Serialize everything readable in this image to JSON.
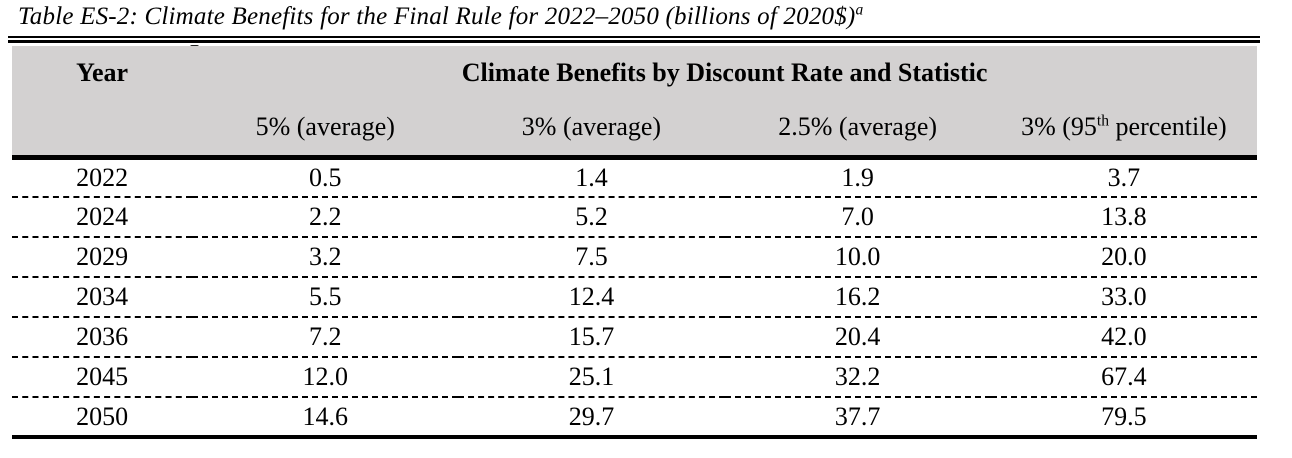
{
  "title": {
    "text": "Table ES-2: Climate Benefits for the Final Rule for 2022–2050 (billions of 2020$)",
    "footnote_marker": "a"
  },
  "table": {
    "header": {
      "year_label": "Year",
      "group_label": "Climate Benefits by Discount Rate and Statistic",
      "columns": [
        {
          "label": "5% (average)"
        },
        {
          "label": "3% (average)"
        },
        {
          "label": "2.5% (average)"
        },
        {
          "pre": "3% (95",
          "sup": "th",
          "post": " percentile)"
        }
      ]
    },
    "rows": [
      {
        "year": "2022",
        "values": [
          "0.5",
          "1.4",
          "1.9",
          "3.7"
        ]
      },
      {
        "year": "2024",
        "values": [
          "2.2",
          "5.2",
          "7.0",
          "13.8"
        ]
      },
      {
        "year": "2029",
        "values": [
          "3.2",
          "7.5",
          "10.0",
          "20.0"
        ]
      },
      {
        "year": "2034",
        "values": [
          "5.5",
          "12.4",
          "16.2",
          "33.0"
        ]
      },
      {
        "year": "2036",
        "values": [
          "7.2",
          "15.7",
          "20.4",
          "42.0"
        ]
      },
      {
        "year": "2045",
        "values": [
          "12.0",
          "25.1",
          "32.2",
          "67.4"
        ]
      },
      {
        "year": "2050",
        "values": [
          "14.6",
          "29.7",
          "37.7",
          "79.5"
        ]
      }
    ]
  },
  "colors": {
    "header_bg": "#d3d1d1",
    "text": "#000000",
    "rule": "#000000"
  },
  "chart_data": {
    "type": "table",
    "title": "Table ES-2: Climate Benefits for the Final Rule for 2022–2050 (billions of 2020$)",
    "footnote_marker": "a",
    "group_header": "Climate Benefits by Discount Rate and Statistic",
    "columns": [
      "Year",
      "5% (average)",
      "3% (average)",
      "2.5% (average)",
      "3% (95th percentile)"
    ],
    "rows": [
      [
        2022,
        0.5,
        1.4,
        1.9,
        3.7
      ],
      [
        2024,
        2.2,
        5.2,
        7.0,
        13.8
      ],
      [
        2029,
        3.2,
        7.5,
        10.0,
        20.0
      ],
      [
        2034,
        5.5,
        12.4,
        16.2,
        33.0
      ],
      [
        2036,
        7.2,
        15.7,
        20.4,
        42.0
      ],
      [
        2045,
        12.0,
        25.1,
        32.2,
        67.4
      ],
      [
        2050,
        14.6,
        29.7,
        37.7,
        79.5
      ]
    ]
  }
}
